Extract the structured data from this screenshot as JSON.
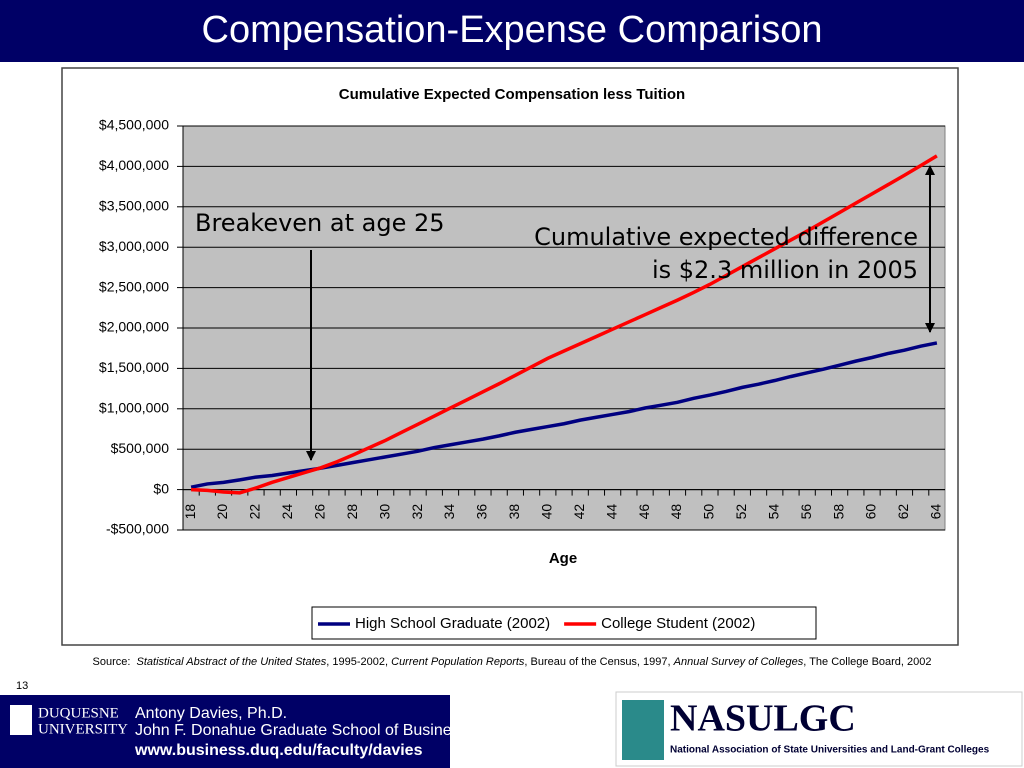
{
  "slide": {
    "title": "Compensation-Expense Comparison",
    "number": "13",
    "source": [
      {
        "text": "Source:  "
      },
      {
        "text": "Statistical Abstract of the United States",
        "italic": true
      },
      {
        "text": ", 1995-2002, "
      },
      {
        "text": "Current Population Reports",
        "italic": true
      },
      {
        "text": ", Bureau of the Census, 1997, "
      },
      {
        "text": "Annual Survey of Colleges",
        "italic": true
      },
      {
        "text": ", The College Board, 2002"
      }
    ],
    "footer": {
      "logo_lines": [
        "DUQUESNE",
        "UNIVERSITY"
      ],
      "author": "Antony Davies, Ph.D.",
      "school": "John F. Donahue Graduate School of Business",
      "url": "www.business.duq.edu/faculty/davies",
      "partner": "NASULGC",
      "partner_full": "National Association of State Universities and Land-Grant Colleges"
    }
  },
  "chart_data": {
    "type": "line",
    "title": "Cumulative Expected Compensation less Tuition",
    "x_label": "Age",
    "categories": [
      "18",
      null,
      "20",
      null,
      "22",
      null,
      "24",
      null,
      "26",
      null,
      "28",
      null,
      "30",
      null,
      "32",
      null,
      "34",
      null,
      "36",
      null,
      "38",
      null,
      "40",
      null,
      "42",
      null,
      "44",
      null,
      "46",
      null,
      "48",
      null,
      "50",
      null,
      "52",
      null,
      "54",
      null,
      "56",
      null,
      "58",
      null,
      "60",
      null,
      "62",
      null,
      "64"
    ],
    "series": [
      {
        "name": "High School Graduate (2002)",
        "color": "#000080",
        "values": [
          30000,
          70000,
          90000,
          120000,
          155000,
          175000,
          205000,
          235000,
          265000,
          300000,
          335000,
          370000,
          405000,
          440000,
          475000,
          520000,
          555000,
          590000,
          625000,
          665000,
          710000,
          745000,
          780000,
          815000,
          860000,
          895000,
          930000,
          965000,
          1010000,
          1045000,
          1080000,
          1130000,
          1170000,
          1215000,
          1265000,
          1305000,
          1350000,
          1400000,
          1445000,
          1490000,
          1540000,
          1590000,
          1635000,
          1685000,
          1725000,
          1775000,
          1815000
        ]
      },
      {
        "name": "College Student (2002)",
        "color": "#ff0000",
        "values": [
          0,
          -10000,
          -30000,
          -40000,
          20000,
          90000,
          150000,
          210000,
          270000,
          345000,
          430000,
          520000,
          610000,
          710000,
          810000,
          910000,
          1010000,
          1110000,
          1210000,
          1310000,
          1415000,
          1520000,
          1625000,
          1715000,
          1805000,
          1895000,
          1985000,
          2075000,
          2165000,
          2255000,
          2345000,
          2440000,
          2540000,
          2650000,
          2760000,
          2870000,
          2980000,
          3090000,
          3200000,
          3315000,
          3430000,
          3545000,
          3660000,
          3775000,
          3890000,
          4010000,
          4130000
        ]
      }
    ],
    "ylim": [
      -500000,
      4500000
    ],
    "yticks": [
      {
        "value": -500000,
        "label": "-$500,000"
      },
      {
        "value": 0,
        "label": "$0"
      },
      {
        "value": 500000,
        "label": "$500,000"
      },
      {
        "value": 1000000,
        "label": "$1,000,000"
      },
      {
        "value": 1500000,
        "label": "$1,500,000"
      },
      {
        "value": 2000000,
        "label": "$2,000,000"
      },
      {
        "value": 2500000,
        "label": "$2,500,000"
      },
      {
        "value": 3000000,
        "label": "$3,000,000"
      },
      {
        "value": 3500000,
        "label": "$3,500,000"
      },
      {
        "value": 4000000,
        "label": "$4,000,000"
      },
      {
        "value": 4500000,
        "label": "$4,500,000"
      }
    ],
    "grid": true,
    "legend": "bottom",
    "annotations": [
      {
        "lines": [
          "Breakeven at age 25"
        ]
      },
      {
        "lines": [
          "Cumulative expected difference",
          "is $2.3 million in 2005"
        ]
      }
    ]
  }
}
